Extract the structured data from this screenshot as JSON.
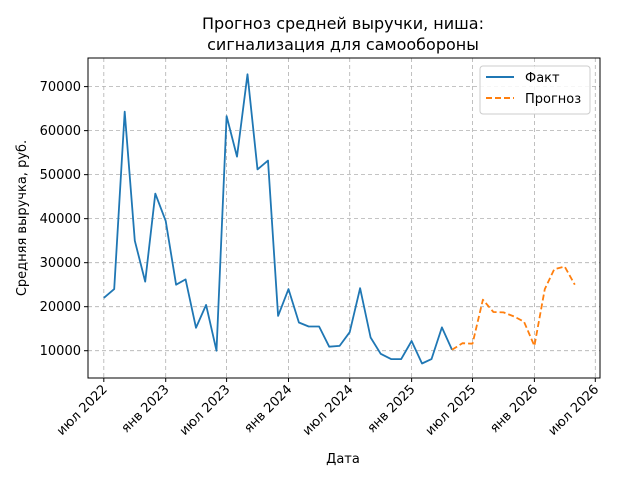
{
  "chart_data": {
    "type": "line",
    "title": [
      "Прогноз средней выручки, ниша:",
      "сигнализация для самообороны"
    ],
    "xlabel": "Дата",
    "ylabel": "Средняя выручка, руб.",
    "xlim": [
      "2022-05-15",
      "2026-07-15"
    ],
    "ylim": [
      3800,
      76500
    ],
    "grid": true,
    "legend_position": "top-right",
    "colors": {
      "actual": "#1f77b4",
      "forecast": "#ff7f0e"
    },
    "x_ticks": [
      {
        "date": "2022-07-01",
        "label": "июл 2022"
      },
      {
        "date": "2023-01-01",
        "label": "янв 2023"
      },
      {
        "date": "2023-07-01",
        "label": "июл 2023"
      },
      {
        "date": "2024-01-01",
        "label": "янв 2024"
      },
      {
        "date": "2024-07-01",
        "label": "июл 2024"
      },
      {
        "date": "2025-01-01",
        "label": "янв 2025"
      },
      {
        "date": "2025-07-01",
        "label": "июл 2025"
      },
      {
        "date": "2026-01-01",
        "label": "янв 2026"
      },
      {
        "date": "2026-07-01",
        "label": "июл 2026"
      }
    ],
    "y_ticks": [
      {
        "value": 10000,
        "label": "10000"
      },
      {
        "value": 20000,
        "label": "20000"
      },
      {
        "value": 30000,
        "label": "30000"
      },
      {
        "value": 40000,
        "label": "40000"
      },
      {
        "value": 50000,
        "label": "50000"
      },
      {
        "value": 60000,
        "label": "60000"
      },
      {
        "value": 70000,
        "label": "70000"
      }
    ],
    "series": [
      {
        "name": "Факт",
        "style": "solid",
        "x": [
          "2022-07-01",
          "2022-08-01",
          "2022-09-01",
          "2022-10-01",
          "2022-11-01",
          "2022-12-01",
          "2023-01-01",
          "2023-02-01",
          "2023-03-01",
          "2023-04-01",
          "2023-05-01",
          "2023-06-01",
          "2023-07-01",
          "2023-08-01",
          "2023-09-01",
          "2023-10-01",
          "2023-11-01",
          "2023-12-01",
          "2024-01-01",
          "2024-02-01",
          "2024-03-01",
          "2024-04-01",
          "2024-05-01",
          "2024-06-01",
          "2024-07-01",
          "2024-08-01",
          "2024-09-01",
          "2024-10-01",
          "2024-11-01",
          "2024-12-01",
          "2025-01-01",
          "2025-02-01",
          "2025-03-01",
          "2025-04-01",
          "2025-05-01"
        ],
        "values": [
          22000,
          24000,
          64300,
          35000,
          25700,
          45700,
          39500,
          25000,
          26200,
          15200,
          20400,
          10000,
          63300,
          54100,
          72800,
          51200,
          53200,
          17900,
          24000,
          16400,
          15500,
          15500,
          10900,
          11100,
          14200,
          24200,
          13000,
          9300,
          8100,
          8100,
          12200,
          7100,
          8100,
          15300,
          10200
        ]
      },
      {
        "name": "Прогноз",
        "style": "dashed",
        "x": [
          "2025-05-01",
          "2025-06-01",
          "2025-07-01",
          "2025-08-01",
          "2025-09-01",
          "2025-10-01",
          "2025-11-01",
          "2025-12-01",
          "2026-01-01",
          "2026-02-01",
          "2026-03-01",
          "2026-04-01",
          "2026-05-01"
        ],
        "values": [
          10200,
          11700,
          11600,
          21600,
          18800,
          18700,
          17800,
          16600,
          11100,
          24000,
          28500,
          29100,
          25000
        ]
      }
    ]
  }
}
